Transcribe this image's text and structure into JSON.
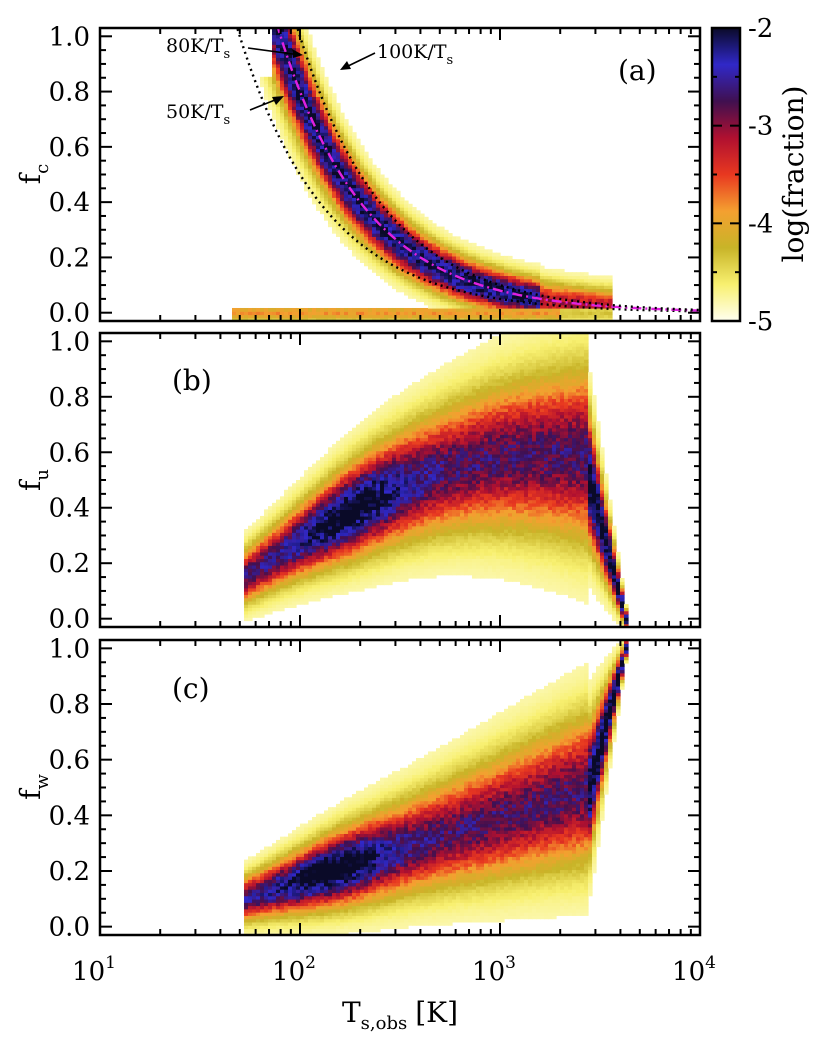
{
  "chart_data": {
    "type": "heatmap",
    "x_axis": {
      "label_main": "T",
      "label_sub": "s,obs",
      "label_unit": "[K]",
      "scale": "log",
      "range": [
        10,
        10000
      ],
      "ticks": [
        {
          "value": 10,
          "base": "10",
          "exp": "1"
        },
        {
          "value": 100,
          "base": "10",
          "exp": "2"
        },
        {
          "value": 1000,
          "base": "10",
          "exp": "3"
        },
        {
          "value": 10000,
          "base": "10",
          "exp": "4"
        }
      ]
    },
    "y_ticks": [
      "0.0",
      "0.2",
      "0.4",
      "0.6",
      "0.8",
      "1.0"
    ],
    "y_range": [
      -0.03,
      1.03
    ],
    "colorbar": {
      "label": "log(fraction)",
      "range": [
        -5,
        -2
      ],
      "ticks": [
        "-2",
        "-3",
        "-4",
        "-5"
      ],
      "colormap": [
        "#fffff0",
        "#f8f070",
        "#c8b428",
        "#f4a030",
        "#e83820",
        "#b01030",
        "#401050",
        "#3028c8",
        "#0a0a28"
      ]
    },
    "panels": [
      {
        "id": "a",
        "tag": "(a)",
        "ylabel_main": "f",
        "ylabel_sub": "c",
        "curves": [
          {
            "label_main": "50K/T",
            "label_sub": "s",
            "K": 50,
            "style": "dotted",
            "color": "#000000"
          },
          {
            "label_main": "80K/T",
            "label_sub": "s",
            "K": 80,
            "style": "dash-dot",
            "color": "#e020e0"
          },
          {
            "label_main": "100K/T",
            "label_sub": "s",
            "K": 100,
            "style": "dotted",
            "color": "#000000"
          }
        ]
      },
      {
        "id": "b",
        "tag": "(b)",
        "ylabel_main": "f",
        "ylabel_sub": "u"
      },
      {
        "id": "c",
        "tag": "(c)",
        "ylabel_main": "f",
        "ylabel_sub": "w"
      }
    ]
  }
}
